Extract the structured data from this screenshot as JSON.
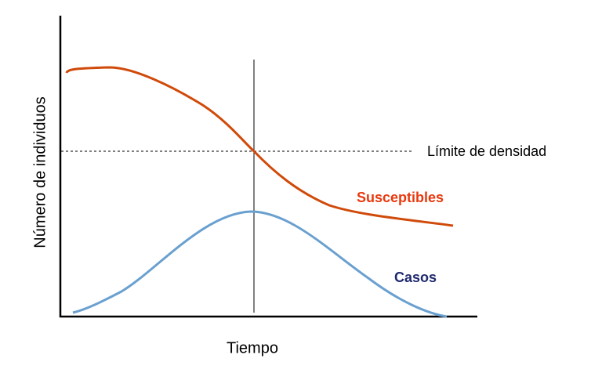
{
  "axes": {
    "x_label": "Tiempo",
    "y_label": "Número de individuos"
  },
  "threshold": {
    "label": "Límite de densidad"
  },
  "curves": [
    {
      "label": "Susceptibles",
      "color": "#d04a0a"
    },
    {
      "label": "Casos",
      "color": "#6aa0d0"
    }
  ]
}
